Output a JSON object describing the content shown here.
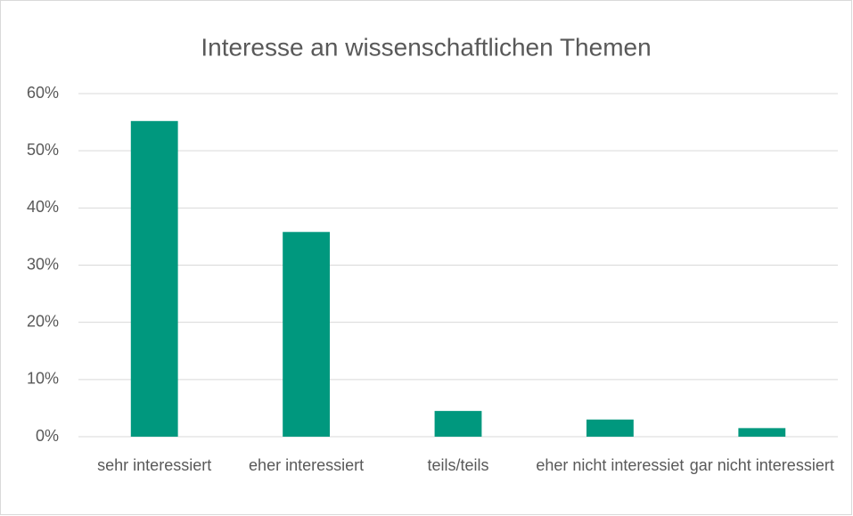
{
  "chart_data": {
    "type": "bar",
    "title": "Interesse an wissenschaftlichen Themen",
    "categories": [
      "sehr interessiert",
      "eher interessiert",
      "teils/teils",
      "eher nicht interessiet",
      "gar nicht interessiert"
    ],
    "values": [
      55.2,
      35.8,
      4.5,
      3.0,
      1.5
    ],
    "color": "#00987e",
    "ylim": [
      0,
      60
    ],
    "yticks": [
      {
        "value": 0,
        "label": "0%"
      },
      {
        "value": 10,
        "label": "10%"
      },
      {
        "value": 20,
        "label": "20%"
      },
      {
        "value": 30,
        "label": "30%"
      },
      {
        "value": 40,
        "label": "40%"
      },
      {
        "value": 50,
        "label": "50%"
      },
      {
        "value": 60,
        "label": "60%"
      }
    ],
    "grid": true
  }
}
